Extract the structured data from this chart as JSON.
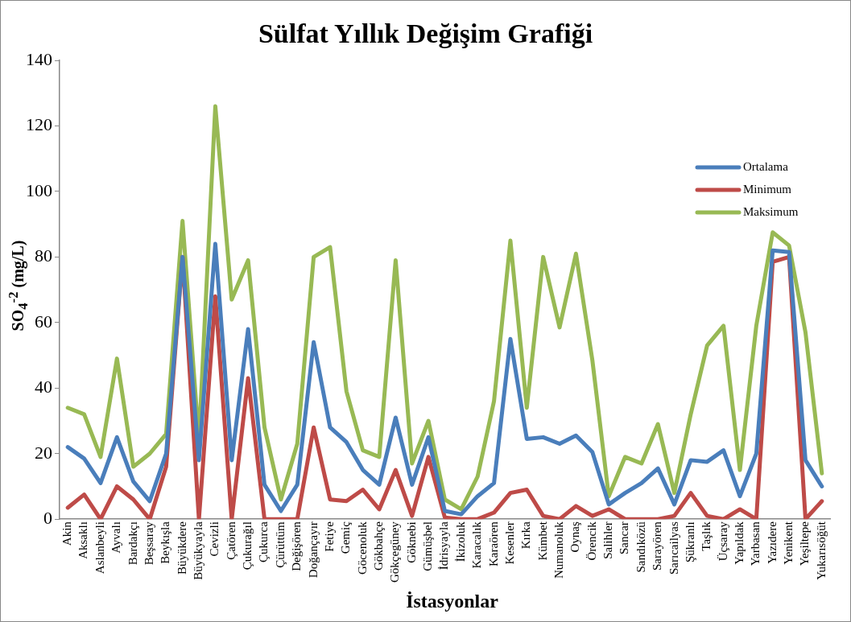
{
  "chart_data": {
    "type": "line",
    "title": "Sülfat Yıllık Değişim Grafiği",
    "xlabel": "İstasyonlar",
    "ylabel": "SO$_{4}$$^{-2}$ (mg/L)",
    "categories": [
      "Akin",
      "Aksaklı",
      "Aslanbeyli",
      "Ayvalı",
      "Bardakçı",
      "Beşsaray",
      "Beykışla",
      "Büyükdere",
      "Büyükyayla",
      "Cevizli",
      "Çatören",
      "Çukurağıl",
      "Çukurca",
      "Çürüttüm",
      "Değişören",
      "Doğançayır",
      "Fetiye",
      "Gemiç",
      "Göcenoluk",
      "Gökbahçe",
      "Gökçegüney",
      "Göknebi",
      "Gümüşbel",
      "İdrisyayla",
      "İkizoluk",
      "Karacalık",
      "Karaören",
      "Kesenler",
      "Kırka",
      "Kümbet",
      "Numanoluk",
      "Oynaş",
      "Örencik",
      "Salihler",
      "Sancar",
      "Sandıközü",
      "Sarayören",
      "Sarıcailyas",
      "Şükranlı",
      "Taşlık",
      "Üçsaray",
      "Yapıldak",
      "Yarbasan",
      "Yazıdere",
      "Yenikent",
      "Yeşiltepe",
      "Yukarısöğüt"
    ],
    "series": [
      {
        "name": "Ortalama",
        "color": "#4a7ebb",
        "values": [
          22,
          18.5,
          11,
          25,
          11.5,
          5.5,
          20,
          80,
          18,
          84,
          18,
          58,
          10.5,
          2.5,
          10.5,
          54,
          28,
          23.5,
          15,
          10.5,
          31,
          10.5,
          25,
          2.5,
          1.5,
          7,
          11,
          55,
          24.5,
          25,
          23,
          25.5,
          20.5,
          4.5,
          8,
          11,
          15.5,
          4.5,
          18,
          17.5,
          21,
          7,
          20,
          82,
          81.5,
          18,
          10
        ]
      },
      {
        "name": "Minimum",
        "color": "#be4b48",
        "values": [
          3.5,
          7.5,
          0,
          10,
          6,
          0,
          16,
          80,
          0,
          68,
          0,
          43,
          0,
          0,
          0,
          28,
          6,
          5.5,
          9,
          3,
          15,
          1,
          19,
          0.5,
          0,
          0,
          2,
          8,
          9,
          1,
          0,
          4,
          1,
          3,
          0,
          0,
          0,
          1,
          8,
          1,
          0,
          3,
          0,
          78.5,
          80,
          0,
          5.5
        ]
      },
      {
        "name": "Maksimum",
        "color": "#98b954",
        "values": [
          34,
          32,
          19,
          49,
          16,
          20,
          26,
          91,
          24,
          126,
          67,
          79,
          28,
          6,
          23,
          80,
          83,
          39,
          21,
          19,
          79,
          17,
          30,
          6,
          3,
          13,
          36,
          85,
          34,
          80,
          58.5,
          81,
          48.5,
          7,
          19,
          17,
          29,
          8,
          32,
          53,
          59,
          15,
          59,
          87.5,
          83.5,
          57,
          14
        ]
      }
    ],
    "ylim": [
      0,
      140
    ],
    "yticks": [
      0,
      20,
      40,
      60,
      80,
      100,
      120,
      140
    ],
    "grid": false,
    "legend": "top right",
    "marker": "none",
    "line_style": "solid"
  }
}
